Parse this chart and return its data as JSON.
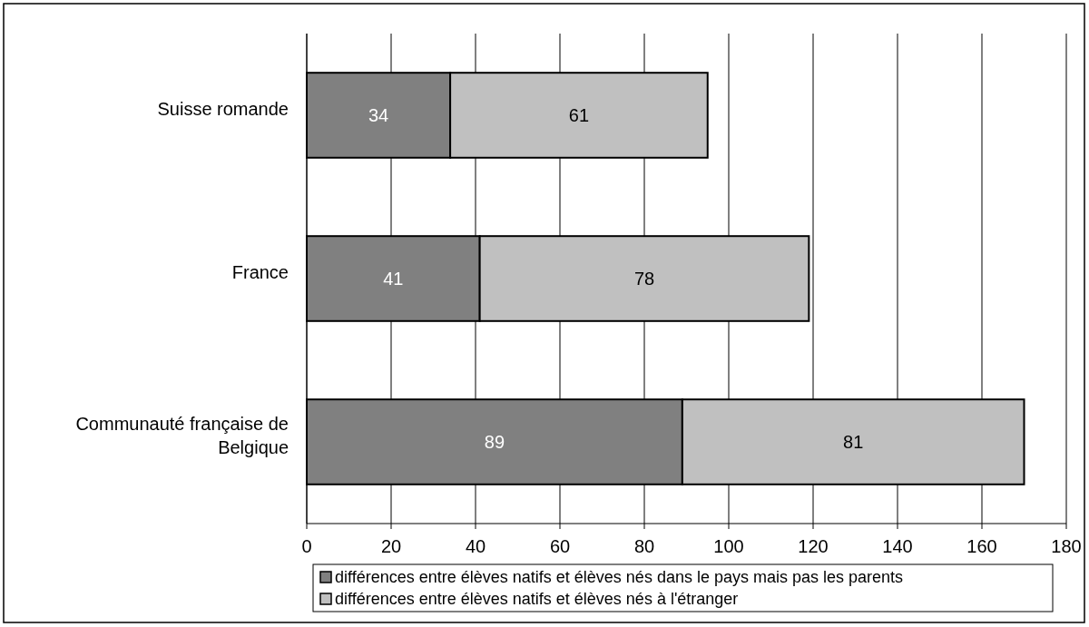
{
  "chart_data": {
    "type": "bar",
    "orientation": "horizontal",
    "stacked": true,
    "categories": [
      "Suisse romande",
      "France",
      "Communauté française de Belgique"
    ],
    "series": [
      {
        "name": "différences entre élèves natifs et élèves nés dans le pays mais pas les parents",
        "color": "#808080",
        "values": [
          34,
          41,
          89
        ]
      },
      {
        "name": "différences entre élèves natifs et élèves nés à l'étranger",
        "color": "#c0c0c0",
        "values": [
          61,
          78,
          81
        ]
      }
    ],
    "xlim": [
      0,
      180
    ],
    "xticks": [
      0,
      20,
      40,
      60,
      80,
      100,
      120,
      140,
      160,
      180
    ],
    "grid": "x",
    "legend": "bottom",
    "data_labels": true
  }
}
